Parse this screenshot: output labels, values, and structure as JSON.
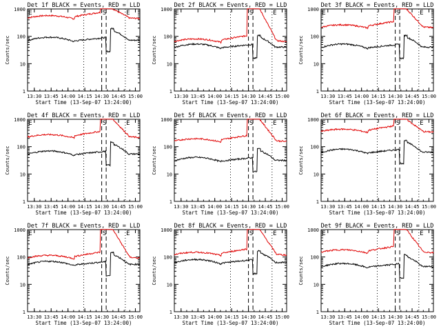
{
  "chart_data": [
    {
      "type": "line",
      "title": "Det 1f BLACK = Events, RED = LLD",
      "xlabel": "Start Time (13-Sep-07 13:24:00)",
      "ylabel": "Counts/sec",
      "ylim": [
        1,
        1000
      ],
      "yscale": "log",
      "x_ticks": [
        "13:30",
        "13:45",
        "14:00",
        "14:15",
        "14:30",
        "14:45",
        "15:00"
      ],
      "y_ticks": [
        "1",
        "10",
        "100",
        "1000"
      ],
      "markers": [
        "E",
        "S",
        "E"
      ],
      "red_level": 500,
      "black_level": 80,
      "series": [
        {
          "name": "RED = LLD",
          "color": "#e00000"
        },
        {
          "name": "BLACK = Events",
          "color": "#000000"
        }
      ]
    },
    {
      "type": "line",
      "title": "Det 2f BLACK = Events, RED = LLD",
      "xlabel": "Start Time (13-Sep-07 13:24:00)",
      "ylabel": "Counts/sec",
      "ylim": [
        1,
        1000
      ],
      "yscale": "log",
      "x_ticks": [
        "13:30",
        "13:45",
        "14:00",
        "14:15",
        "14:30",
        "14:45",
        "15:00"
      ],
      "y_ticks": [
        "1",
        "10",
        "100",
        "1000"
      ],
      "markers": [
        "E",
        "S",
        "E"
      ],
      "red_level": 70,
      "black_level": 45,
      "series": [
        {
          "name": "RED = LLD",
          "color": "#e00000"
        },
        {
          "name": "BLACK = Events",
          "color": "#000000"
        }
      ]
    },
    {
      "type": "line",
      "title": "Det 3f BLACK = Events, RED = LLD",
      "xlabel": "Start Time (13-Sep-07 13:24:00)",
      "ylabel": "Counts/sec",
      "ylim": [
        1,
        1000
      ],
      "yscale": "log",
      "x_ticks": [
        "13:30",
        "13:45",
        "14:00",
        "14:15",
        "14:30",
        "14:45",
        "15:00"
      ],
      "y_ticks": [
        "1",
        "10",
        "100",
        "1000"
      ],
      "markers": [
        "E",
        "S",
        "E"
      ],
      "red_level": 230,
      "black_level": 45,
      "series": [
        {
          "name": "RED = LLD",
          "color": "#e00000"
        },
        {
          "name": "BLACK = Events",
          "color": "#000000"
        }
      ]
    },
    {
      "type": "line",
      "title": "Det 4f BLACK = Events, RED = LLD",
      "xlabel": "Start Time (13-Sep-07 13:24:00)",
      "ylabel": "Counts/sec",
      "ylim": [
        1,
        1000
      ],
      "yscale": "log",
      "x_ticks": [
        "13:30",
        "13:45",
        "14:00",
        "14:15",
        "14:30",
        "14:45",
        "15:00"
      ],
      "y_ticks": [
        "1",
        "10",
        "100",
        "1000"
      ],
      "markers": [
        "E",
        "S",
        "E"
      ],
      "red_level": 240,
      "black_level": 60,
      "series": [
        {
          "name": "RED = LLD",
          "color": "#e00000"
        },
        {
          "name": "BLACK = Events",
          "color": "#000000"
        }
      ]
    },
    {
      "type": "line",
      "title": "Det 5f BLACK = Events, RED = LLD",
      "xlabel": "Start Time (13-Sep-07 13:24:00)",
      "ylabel": "Counts/sec",
      "ylim": [
        1,
        1000
      ],
      "yscale": "log",
      "x_ticks": [
        "13:30",
        "13:45",
        "14:00",
        "14:15",
        "14:30",
        "14:45",
        "15:00"
      ],
      "y_ticks": [
        "1",
        "10",
        "100",
        "1000"
      ],
      "markers": [
        "E",
        "S",
        "E"
      ],
      "red_level": 170,
      "black_level": 35,
      "series": [
        {
          "name": "RED = LLD",
          "color": "#e00000"
        },
        {
          "name": "BLACK = Events",
          "color": "#000000"
        }
      ]
    },
    {
      "type": "line",
      "title": "Det 6f BLACK = Events, RED = LLD",
      "xlabel": "Start Time (13-Sep-07 13:24:00)",
      "ylabel": "Counts/sec",
      "ylim": [
        1,
        1000
      ],
      "yscale": "log",
      "x_ticks": [
        "13:30",
        "13:45",
        "14:00",
        "14:15",
        "14:30",
        "14:45",
        "15:00"
      ],
      "y_ticks": [
        "1",
        "10",
        "100",
        "1000"
      ],
      "markers": [
        "E",
        "S",
        "E"
      ],
      "red_level": 380,
      "black_level": 70,
      "series": [
        {
          "name": "RED = LLD",
          "color": "#e00000"
        },
        {
          "name": "BLACK = Events",
          "color": "#000000"
        }
      ]
    },
    {
      "type": "line",
      "title": "Det 7f BLACK = Events, RED = LLD",
      "xlabel": "Start Time (13-Sep-07 13:24:00)",
      "ylabel": "Counts/sec",
      "ylim": [
        1,
        1000
      ],
      "yscale": "log",
      "x_ticks": [
        "13:30",
        "13:45",
        "14:00",
        "14:15",
        "14:30",
        "14:45",
        "15:00"
      ],
      "y_ticks": [
        "1",
        "10",
        "100",
        "1000"
      ],
      "markers": [
        "E",
        "S",
        "E"
      ],
      "red_level": 100,
      "black_level": 60,
      "series": [
        {
          "name": "RED = LLD",
          "color": "#e00000"
        },
        {
          "name": "BLACK = Events",
          "color": "#000000"
        }
      ]
    },
    {
      "type": "line",
      "title": "Det 8f BLACK = Events, RED = LLD",
      "xlabel": "Start Time (13-Sep-07 13:24:00)",
      "ylabel": "Counts/sec",
      "ylim": [
        1,
        1000
      ],
      "yscale": "log",
      "x_ticks": [
        "13:30",
        "13:45",
        "14:00",
        "14:15",
        "14:30",
        "14:45",
        "15:00"
      ],
      "y_ticks": [
        "1",
        "10",
        "100",
        "1000"
      ],
      "markers": [
        "E",
        "S",
        "E"
      ],
      "red_level": 130,
      "black_level": 70,
      "series": [
        {
          "name": "RED = LLD",
          "color": "#e00000"
        },
        {
          "name": "BLACK = Events",
          "color": "#000000"
        }
      ]
    },
    {
      "type": "line",
      "title": "Det 9f BLACK = Events, RED = LLD",
      "xlabel": "Start Time (13-Sep-07 13:24:00)",
      "ylabel": "Counts/sec",
      "ylim": [
        1,
        1000
      ],
      "yscale": "log",
      "x_ticks": [
        "13:30",
        "13:45",
        "14:00",
        "14:15",
        "14:30",
        "14:45",
        "15:00"
      ],
      "y_ticks": [
        "1",
        "10",
        "100",
        "1000"
      ],
      "markers": [
        "E",
        "S",
        "E"
      ],
      "red_level": 160,
      "black_level": 50,
      "series": [
        {
          "name": "RED = LLD",
          "color": "#e00000"
        },
        {
          "name": "BLACK = Events",
          "color": "#000000"
        }
      ]
    }
  ]
}
